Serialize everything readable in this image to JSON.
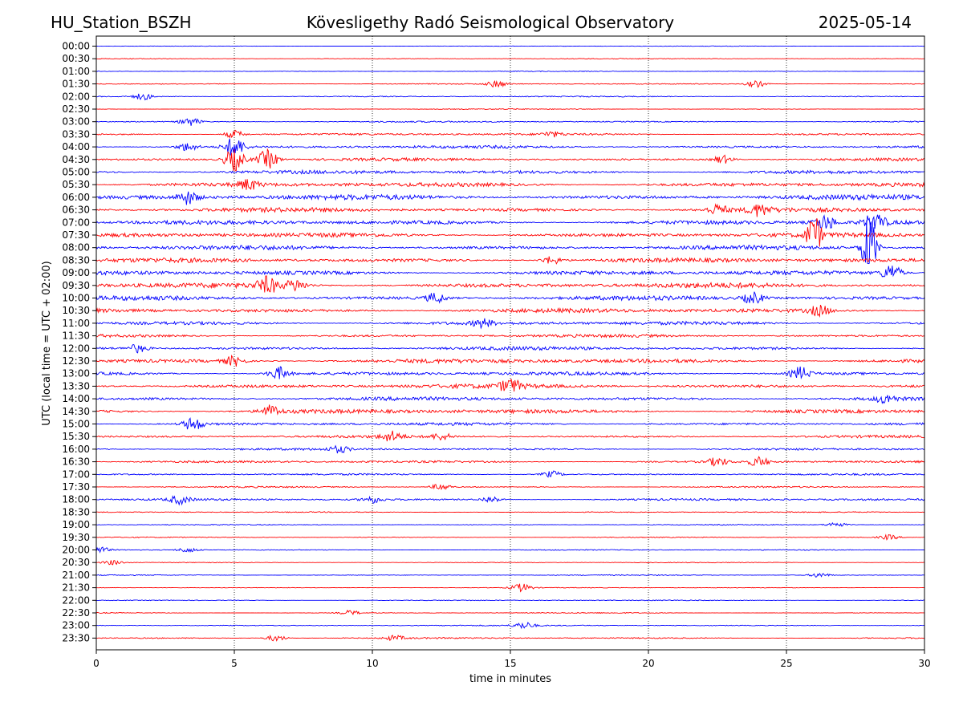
{
  "header": {
    "station": "HU_Station_BSZH",
    "observatory": "Kövesligethy Radó Seismological Observatory",
    "date": "2025-05-14"
  },
  "chart_data": {
    "type": "line",
    "title": "Kövesligethy Radó Seismological Observatory",
    "xlabel": "time in minutes",
    "ylabel": "UTC (local time = UTC + 02:00)",
    "xlim": [
      0,
      30
    ],
    "x_ticks": [
      "0",
      "5",
      "10",
      "15",
      "20",
      "25",
      "30"
    ],
    "grid": "vertical dotted lines at 5-minute intervals",
    "trace_colors": [
      "#0000ff",
      "#ff0000"
    ],
    "rows": [
      {
        "label": "00:00",
        "amplitude": 0.4,
        "events": []
      },
      {
        "label": "00:30",
        "amplitude": 0.5,
        "events": []
      },
      {
        "label": "01:00",
        "amplitude": 0.5,
        "events": []
      },
      {
        "label": "01:30",
        "amplitude": 0.7,
        "events": [
          {
            "t": 14.5,
            "a": 4
          },
          {
            "t": 23.9,
            "a": 4
          }
        ]
      },
      {
        "label": "02:00",
        "amplitude": 0.8,
        "events": [
          {
            "t": 1.7,
            "a": 4
          }
        ]
      },
      {
        "label": "02:30",
        "amplitude": 0.6,
        "events": []
      },
      {
        "label": "03:00",
        "amplitude": 1.0,
        "events": [
          {
            "t": 3.4,
            "a": 5
          }
        ]
      },
      {
        "label": "03:30",
        "amplitude": 1.5,
        "events": [
          {
            "t": 5.0,
            "a": 5
          },
          {
            "t": 16.5,
            "a": 3
          }
        ]
      },
      {
        "label": "04:00",
        "amplitude": 2.0,
        "events": [
          {
            "t": 3.3,
            "a": 5
          },
          {
            "t": 5.0,
            "a": 12
          }
        ]
      },
      {
        "label": "04:30",
        "amplitude": 2.0,
        "events": [
          {
            "t": 5.0,
            "a": 14
          },
          {
            "t": 6.2,
            "a": 12
          },
          {
            "t": 22.7,
            "a": 5
          }
        ]
      },
      {
        "label": "05:00",
        "amplitude": 2.5,
        "events": []
      },
      {
        "label": "05:30",
        "amplitude": 3.0,
        "events": [
          {
            "t": 5.5,
            "a": 6
          }
        ]
      },
      {
        "label": "06:00",
        "amplitude": 3.5,
        "events": [
          {
            "t": 3.3,
            "a": 8
          }
        ]
      },
      {
        "label": "06:30",
        "amplitude": 3.0,
        "events": [
          {
            "t": 22.5,
            "a": 6
          },
          {
            "t": 24.0,
            "a": 7
          }
        ]
      },
      {
        "label": "07:00",
        "amplitude": 3.0,
        "events": [
          {
            "t": 26.4,
            "a": 9
          },
          {
            "t": 28.2,
            "a": 12
          }
        ]
      },
      {
        "label": "07:30",
        "amplitude": 3.0,
        "events": [
          {
            "t": 26.0,
            "a": 24
          }
        ]
      },
      {
        "label": "08:00",
        "amplitude": 3.0,
        "events": [
          {
            "t": 28.0,
            "a": 40
          }
        ]
      },
      {
        "label": "08:30",
        "amplitude": 3.0,
        "events": [
          {
            "t": 16.5,
            "a": 5
          }
        ]
      },
      {
        "label": "09:00",
        "amplitude": 3.0,
        "events": [
          {
            "t": 28.8,
            "a": 10
          }
        ]
      },
      {
        "label": "09:30",
        "amplitude": 3.5,
        "events": [
          {
            "t": 6.2,
            "a": 10
          },
          {
            "t": 7.2,
            "a": 7
          }
        ]
      },
      {
        "label": "10:00",
        "amplitude": 3.0,
        "events": [
          {
            "t": 12.3,
            "a": 6
          },
          {
            "t": 23.8,
            "a": 7
          }
        ]
      },
      {
        "label": "10:30",
        "amplitude": 3.0,
        "events": [
          {
            "t": 26.2,
            "a": 6
          }
        ]
      },
      {
        "label": "11:00",
        "amplitude": 2.5,
        "events": [
          {
            "t": 14.0,
            "a": 5
          }
        ]
      },
      {
        "label": "11:30",
        "amplitude": 2.0,
        "events": []
      },
      {
        "label": "12:00",
        "amplitude": 2.5,
        "events": [
          {
            "t": 1.5,
            "a": 5
          }
        ]
      },
      {
        "label": "12:30",
        "amplitude": 3.0,
        "events": [
          {
            "t": 5.0,
            "a": 6
          }
        ]
      },
      {
        "label": "13:00",
        "amplitude": 2.5,
        "events": [
          {
            "t": 6.6,
            "a": 8
          },
          {
            "t": 25.5,
            "a": 8
          }
        ]
      },
      {
        "label": "13:30",
        "amplitude": 3.0,
        "events": [
          {
            "t": 15.0,
            "a": 8
          }
        ]
      },
      {
        "label": "14:00",
        "amplitude": 2.5,
        "events": [
          {
            "t": 28.6,
            "a": 5
          }
        ]
      },
      {
        "label": "14:30",
        "amplitude": 3.0,
        "events": [
          {
            "t": 6.3,
            "a": 7
          }
        ]
      },
      {
        "label": "15:00",
        "amplitude": 2.0,
        "events": [
          {
            "t": 3.5,
            "a": 8
          }
        ]
      },
      {
        "label": "15:30",
        "amplitude": 1.8,
        "events": [
          {
            "t": 10.7,
            "a": 6
          },
          {
            "t": 12.5,
            "a": 4
          }
        ]
      },
      {
        "label": "16:00",
        "amplitude": 1.5,
        "events": [
          {
            "t": 8.8,
            "a": 4
          }
        ]
      },
      {
        "label": "16:30",
        "amplitude": 1.6,
        "events": [
          {
            "t": 22.5,
            "a": 5
          },
          {
            "t": 24.0,
            "a": 6
          }
        ]
      },
      {
        "label": "17:00",
        "amplitude": 1.2,
        "events": [
          {
            "t": 16.5,
            "a": 4
          }
        ]
      },
      {
        "label": "17:30",
        "amplitude": 1.0,
        "events": [
          {
            "t": 12.5,
            "a": 4
          }
        ]
      },
      {
        "label": "18:00",
        "amplitude": 1.5,
        "events": [
          {
            "t": 3.0,
            "a": 5
          },
          {
            "t": 10.0,
            "a": 4
          },
          {
            "t": 14.3,
            "a": 4
          }
        ]
      },
      {
        "label": "18:30",
        "amplitude": 0.7,
        "events": []
      },
      {
        "label": "19:00",
        "amplitude": 0.6,
        "events": [
          {
            "t": 26.8,
            "a": 3
          }
        ]
      },
      {
        "label": "19:30",
        "amplitude": 0.6,
        "events": [
          {
            "t": 28.7,
            "a": 3
          }
        ]
      },
      {
        "label": "20:00",
        "amplitude": 0.7,
        "events": [
          {
            "t": 0.1,
            "a": 4
          },
          {
            "t": 3.3,
            "a": 3
          }
        ]
      },
      {
        "label": "20:30",
        "amplitude": 0.5,
        "events": [
          {
            "t": 0.6,
            "a": 3
          }
        ]
      },
      {
        "label": "21:00",
        "amplitude": 0.6,
        "events": [
          {
            "t": 26.2,
            "a": 3
          }
        ]
      },
      {
        "label": "21:30",
        "amplitude": 0.5,
        "events": [
          {
            "t": 15.4,
            "a": 5
          }
        ]
      },
      {
        "label": "22:00",
        "amplitude": 0.6,
        "events": []
      },
      {
        "label": "22:30",
        "amplitude": 0.6,
        "events": [
          {
            "t": 9.2,
            "a": 3
          }
        ]
      },
      {
        "label": "23:00",
        "amplitude": 0.8,
        "events": [
          {
            "t": 15.5,
            "a": 4
          }
        ]
      },
      {
        "label": "23:30",
        "amplitude": 1.0,
        "events": [
          {
            "t": 6.5,
            "a": 4
          },
          {
            "t": 10.8,
            "a": 3
          }
        ]
      }
    ]
  }
}
